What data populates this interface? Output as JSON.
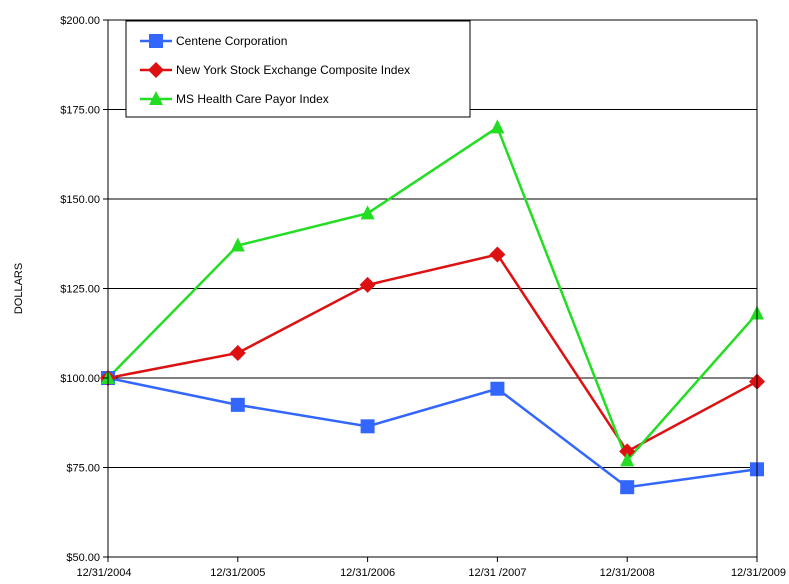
{
  "chart_data": {
    "type": "line",
    "title": "",
    "xlabel": "",
    "ylabel": "DOLLARS",
    "ylim": [
      50,
      200
    ],
    "y_ticks": [
      "$50.00",
      "$75.00",
      "$100.00",
      "$125.00",
      "$150.00",
      "$175.00",
      "$200.00"
    ],
    "y_tick_values": [
      50,
      75,
      100,
      125,
      150,
      175,
      200
    ],
    "categories": [
      "12/31/2004",
      "12/31/2005",
      "12/31/2006",
      "12/31 /2007",
      "12/31/2008",
      "12/31/2009"
    ],
    "grid": "horizontal",
    "legend_position": "top-left",
    "series": [
      {
        "name": "Centene Corporation",
        "color": "#3366ff",
        "marker": "square",
        "values": [
          100,
          92.5,
          86.5,
          97,
          69.5,
          74.5
        ]
      },
      {
        "name": "New York Stock Exchange Composite Index",
        "color": "#dd1111",
        "marker": "diamond",
        "values": [
          100,
          107,
          126,
          134.5,
          79.5,
          99
        ]
      },
      {
        "name": "MS Health Care Payor Index",
        "color": "#22dd22",
        "marker": "triangle",
        "values": [
          100,
          137,
          146,
          170,
          77,
          118
        ]
      }
    ]
  }
}
